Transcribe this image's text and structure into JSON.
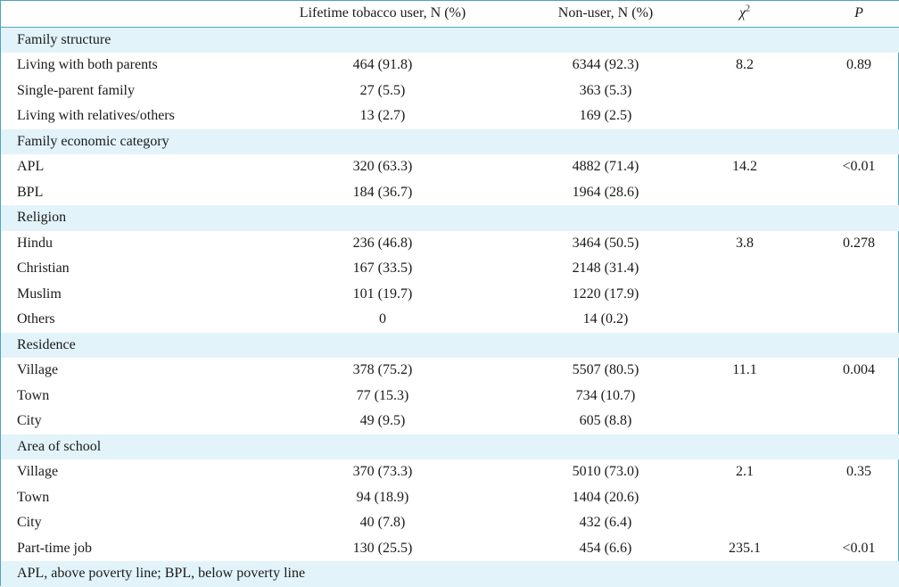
{
  "header": {
    "col1": "",
    "col2": "Lifetime tobacco user, N (%)",
    "col3": "Non-user, N (%)",
    "col4_symbol": "χ",
    "col4_sup": "2",
    "col5": "P"
  },
  "rows": [
    {
      "type": "group",
      "label": "Family structure"
    },
    {
      "type": "data",
      "label": "Living with both parents",
      "user": "464 (91.8)",
      "nonuser": "6344 (92.3)",
      "chi": "8.2",
      "p": "0.89"
    },
    {
      "type": "data",
      "label": "Single-parent family",
      "user": "27 (5.5)",
      "nonuser": "363 (5.3)",
      "chi": "",
      "p": ""
    },
    {
      "type": "data",
      "label": "Living with relatives/others",
      "user": "13 (2.7)",
      "nonuser": "169 (2.5)",
      "chi": "",
      "p": ""
    },
    {
      "type": "group",
      "label": "Family economic category"
    },
    {
      "type": "data",
      "label": "APL",
      "user": "320 (63.3)",
      "nonuser": "4882 (71.4)",
      "chi": "14.2",
      "p": "<0.01"
    },
    {
      "type": "data",
      "label": "BPL",
      "user": "184 (36.7)",
      "nonuser": "1964 (28.6)",
      "chi": "",
      "p": ""
    },
    {
      "type": "group",
      "label": "Religion"
    },
    {
      "type": "data",
      "label": "Hindu",
      "user": "236 (46.8)",
      "nonuser": "3464 (50.5)",
      "chi": "3.8",
      "p": "0.278"
    },
    {
      "type": "data",
      "label": "Christian",
      "user": "167 (33.5)",
      "nonuser": "2148 (31.4)",
      "chi": "",
      "p": ""
    },
    {
      "type": "data",
      "label": "Muslim",
      "user": "101 (19.7)",
      "nonuser": "1220 (17.9)",
      "chi": "",
      "p": ""
    },
    {
      "type": "data",
      "label": "Others",
      "user": "0",
      "nonuser": "14 (0.2)",
      "chi": "",
      "p": ""
    },
    {
      "type": "group",
      "label": "Residence"
    },
    {
      "type": "data",
      "label": "Village",
      "user": "378 (75.2)",
      "nonuser": "5507 (80.5)",
      "chi": "11.1",
      "p": "0.004"
    },
    {
      "type": "data",
      "label": "Town",
      "user": "77 (15.3)",
      "nonuser": "734 (10.7)",
      "chi": "",
      "p": ""
    },
    {
      "type": "data",
      "label": "City",
      "user": "49 (9.5)",
      "nonuser": "605 (8.8)",
      "chi": "",
      "p": ""
    },
    {
      "type": "group",
      "label": "Area of school"
    },
    {
      "type": "data",
      "label": "Village",
      "user": "370 (73.3)",
      "nonuser": "5010 (73.0)",
      "chi": "2.1",
      "p": "0.35"
    },
    {
      "type": "data",
      "label": "Town",
      "user": "94 (18.9)",
      "nonuser": "1404 (20.6)",
      "chi": "",
      "p": ""
    },
    {
      "type": "data",
      "label": "City",
      "user": "40 (7.8)",
      "nonuser": "432 (6.4)",
      "chi": "",
      "p": ""
    },
    {
      "type": "data",
      "label": "Part-time job",
      "user": "130 (25.5)",
      "nonuser": "454 (6.6)",
      "chi": "235.1",
      "p": "<0.01"
    }
  ],
  "footnote": "APL, above poverty line; BPL, below poverty line",
  "colors": {
    "border": "#4fa3bf",
    "band": "#e3f3fa",
    "text": "#1a1a1a"
  }
}
